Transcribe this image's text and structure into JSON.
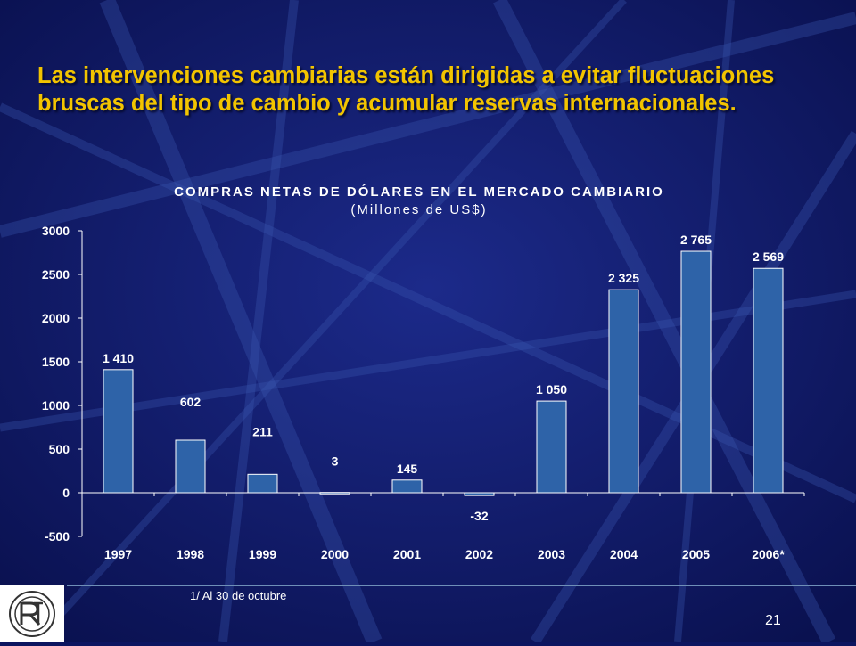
{
  "slide": {
    "headline": "Las intervenciones cambiarias están dirigidas a evitar fluctuaciones bruscas del tipo de cambio y acumular reservas internacionales.",
    "footnote": "1/ Al 30 de octubre",
    "page_number": "21",
    "colors": {
      "background": "#0c1560",
      "headline": "#f2c400",
      "bar": "#2e63a8",
      "chart_text": "#ffffff"
    }
  },
  "chart_data": {
    "type": "bar",
    "title": "COMPRAS NETAS DE DÓLARES EN EL MERCADO CAMBIARIO",
    "subtitle": "(Millones de US$)",
    "categories": [
      "1997",
      "1998",
      "1999",
      "2000",
      "2001",
      "2002",
      "2003",
      "2004",
      "2005",
      "2006*"
    ],
    "values": [
      1410,
      602,
      211,
      3,
      145,
      -32,
      1050,
      2325,
      2765,
      2569
    ],
    "data_labels": [
      "1 410",
      "602",
      "211",
      "3",
      "145",
      "-32",
      "1 050",
      "2 325",
      "2 765",
      "2 569"
    ],
    "ylim": [
      -500,
      3000
    ],
    "yticks": [
      -500,
      0,
      500,
      1000,
      1500,
      2000,
      2500,
      3000
    ],
    "xlabel": "",
    "ylabel": "",
    "grid": false,
    "legend": "none"
  }
}
